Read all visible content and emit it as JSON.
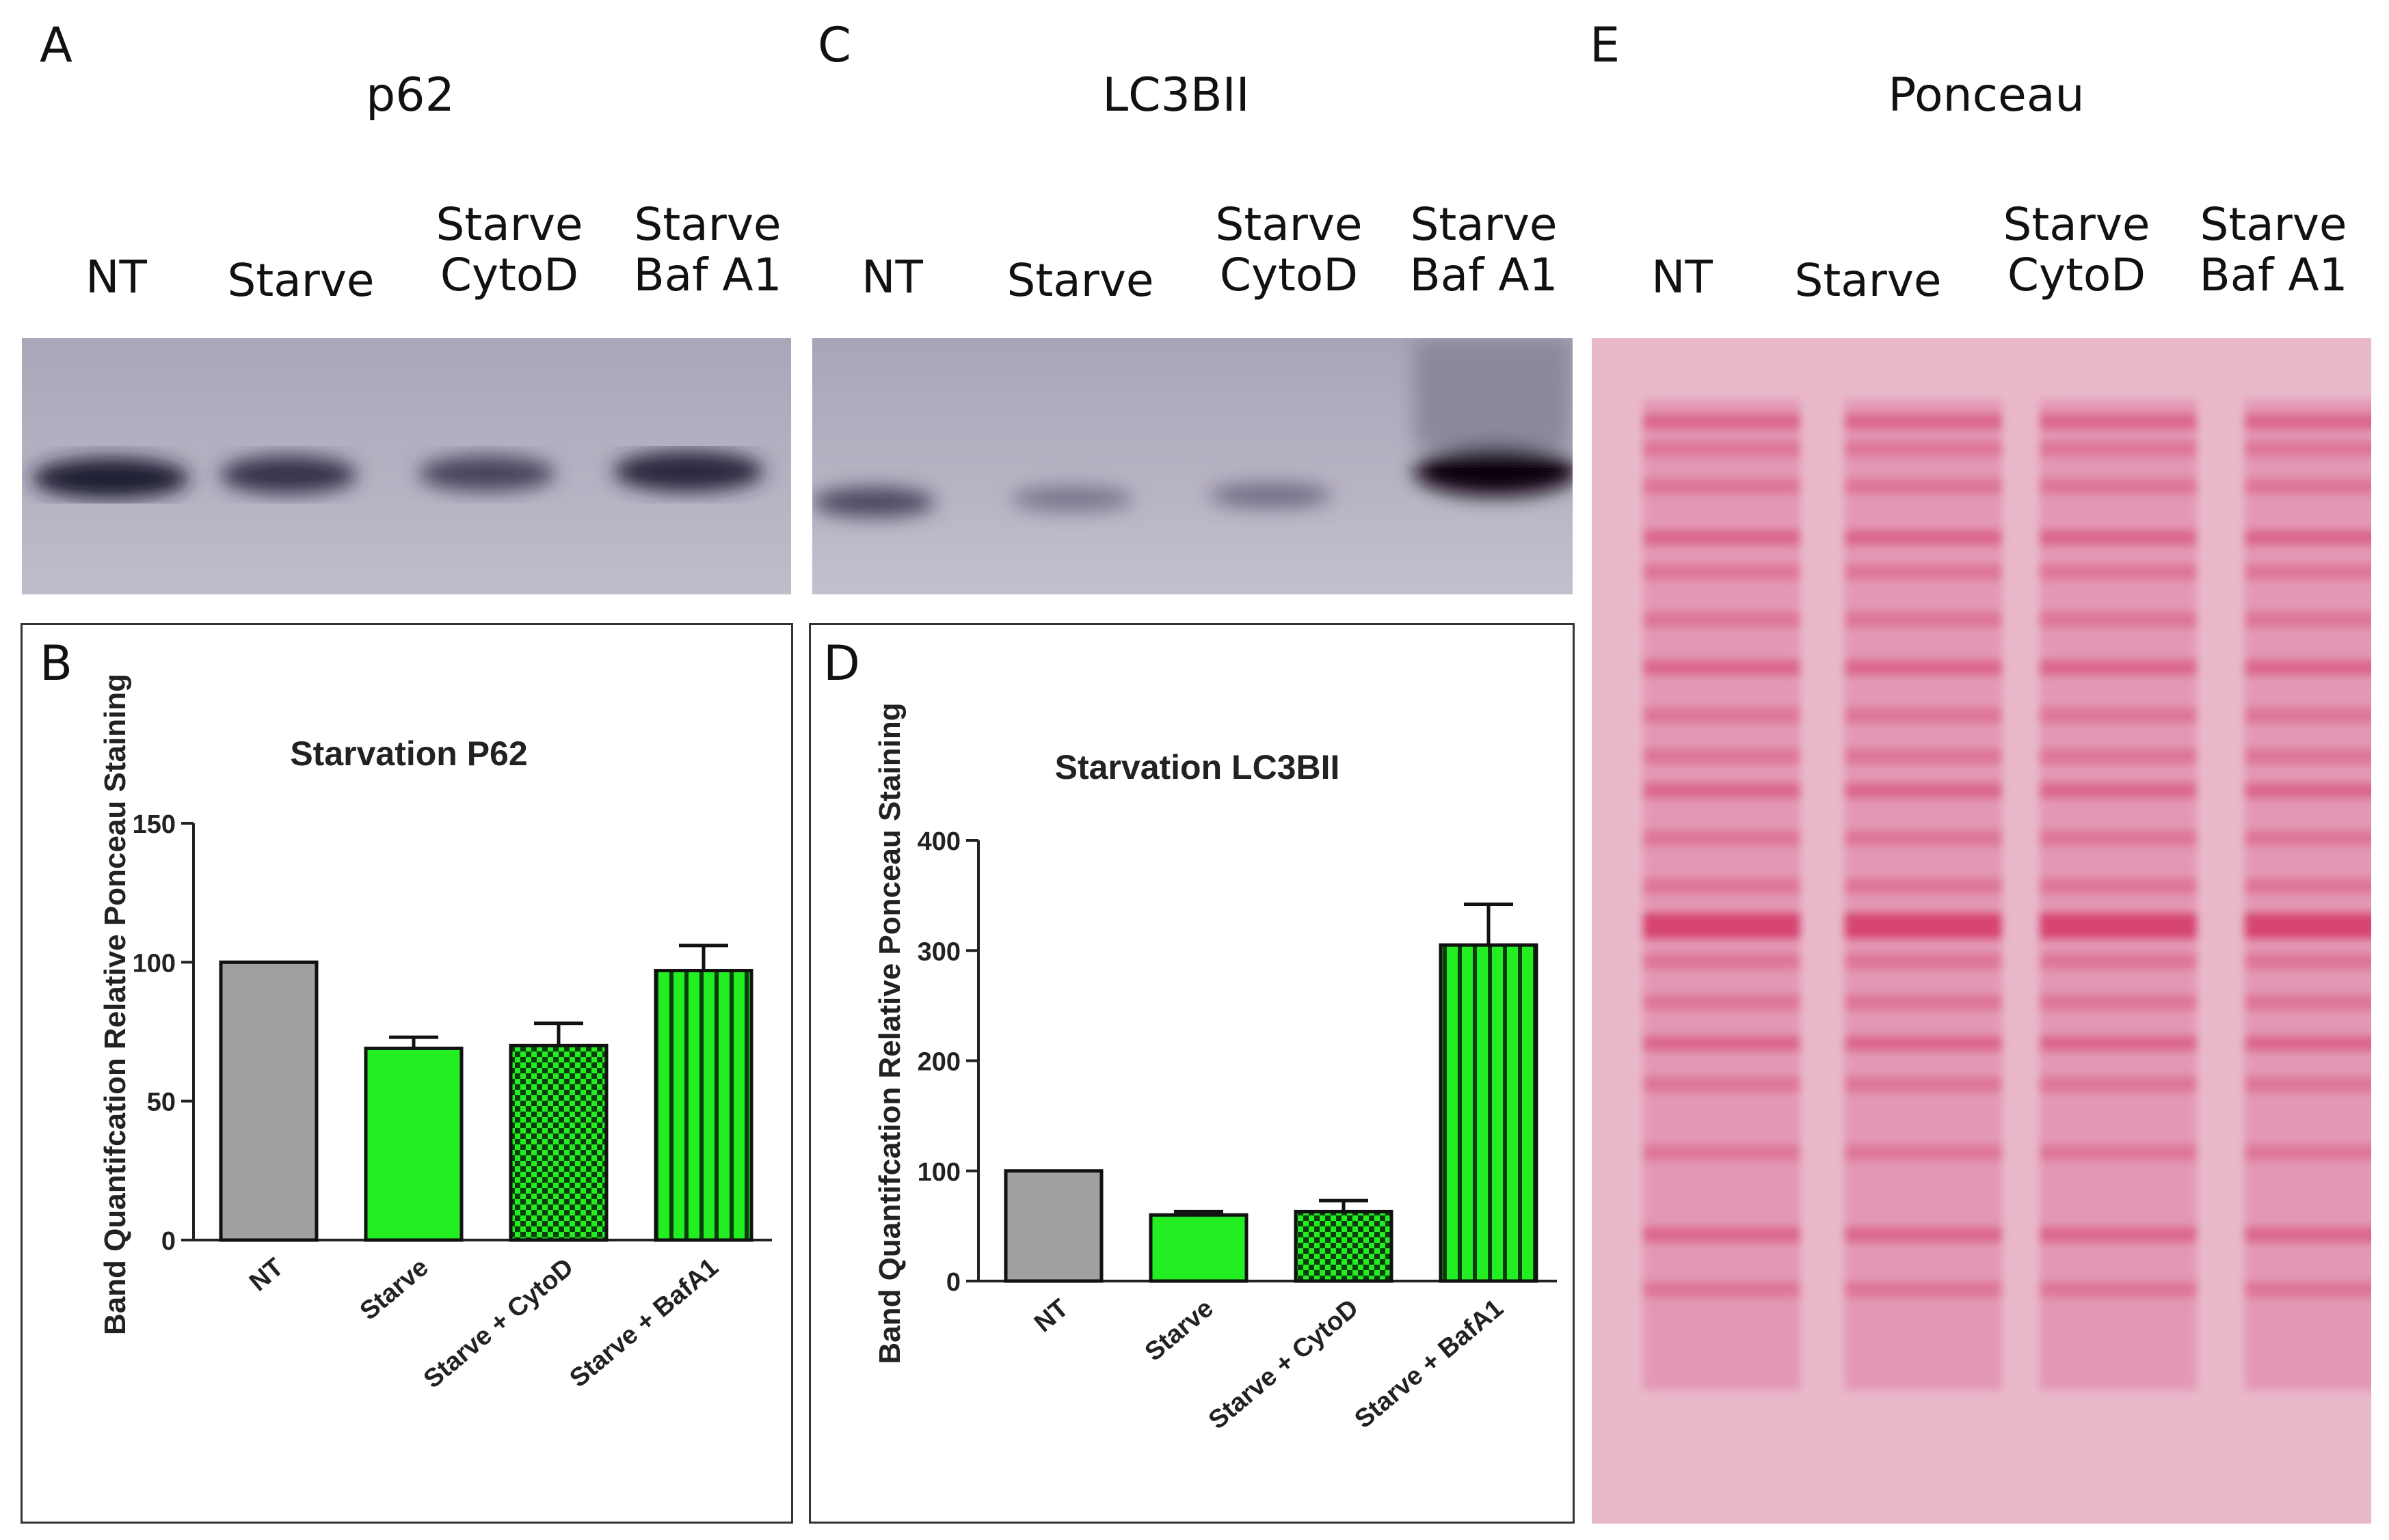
{
  "panels": {
    "A": {
      "letter": "A",
      "title": "p62",
      "lanes": [
        {
          "line1": "",
          "line2": "NT"
        },
        {
          "line1": "",
          "line2": "Starve"
        },
        {
          "line1": "Starve",
          "line2": "CytoD"
        },
        {
          "line1": "Starve",
          "line2": "Baf A1"
        }
      ]
    },
    "C": {
      "letter": "C",
      "title": "LC3BII",
      "lanes": [
        {
          "line1": "",
          "line2": "NT"
        },
        {
          "line1": "",
          "line2": "Starve"
        },
        {
          "line1": "Starve",
          "line2": "CytoD"
        },
        {
          "line1": "Starve",
          "line2": "Baf A1"
        }
      ]
    },
    "E": {
      "letter": "E",
      "title": "Ponceau",
      "lanes": [
        {
          "line1": "",
          "line2": "NT"
        },
        {
          "line1": "",
          "line2": "Starve"
        },
        {
          "line1": "Starve",
          "line2": "CytoD"
        },
        {
          "line1": "Starve",
          "line2": "Baf A1"
        }
      ]
    },
    "B": {
      "letter": "B"
    },
    "D": {
      "letter": "D"
    }
  },
  "chart_data": [
    {
      "type": "bar",
      "title": "Starvation P62",
      "ylabel": "Band Quantifcation Relative Ponceau Staining",
      "xlabel": "",
      "categories": [
        "NT",
        "Starve",
        "Starve + CytoD",
        "Starve + BafA1"
      ],
      "values": [
        100,
        69,
        70,
        97
      ],
      "errors": [
        0,
        4,
        8,
        9
      ],
      "ylim": [
        0,
        150
      ],
      "yticks": [
        0,
        50,
        100,
        150
      ],
      "colors": [
        "#a0a0a0",
        "#22ee22",
        "#22ee22",
        "#22ee22"
      ],
      "patterns": [
        "solid",
        "solid",
        "checker",
        "stripes"
      ],
      "grid": false
    },
    {
      "type": "bar",
      "title": "Starvation LC3BII",
      "ylabel": "Band Quantifcation Relative Ponceau Staining",
      "xlabel": "",
      "categories": [
        "NT",
        "Starve",
        "Starve + CytoD",
        "Starve + BafA1"
      ],
      "values": [
        100,
        60,
        63,
        305
      ],
      "errors": [
        0,
        3,
        10,
        37
      ],
      "ylim": [
        0,
        400
      ],
      "yticks": [
        0,
        100,
        200,
        300,
        400
      ],
      "colors": [
        "#a0a0a0",
        "#22ee22",
        "#22ee22",
        "#22ee22"
      ],
      "patterns": [
        "solid",
        "solid",
        "checker",
        "stripes"
      ],
      "grid": false
    }
  ]
}
